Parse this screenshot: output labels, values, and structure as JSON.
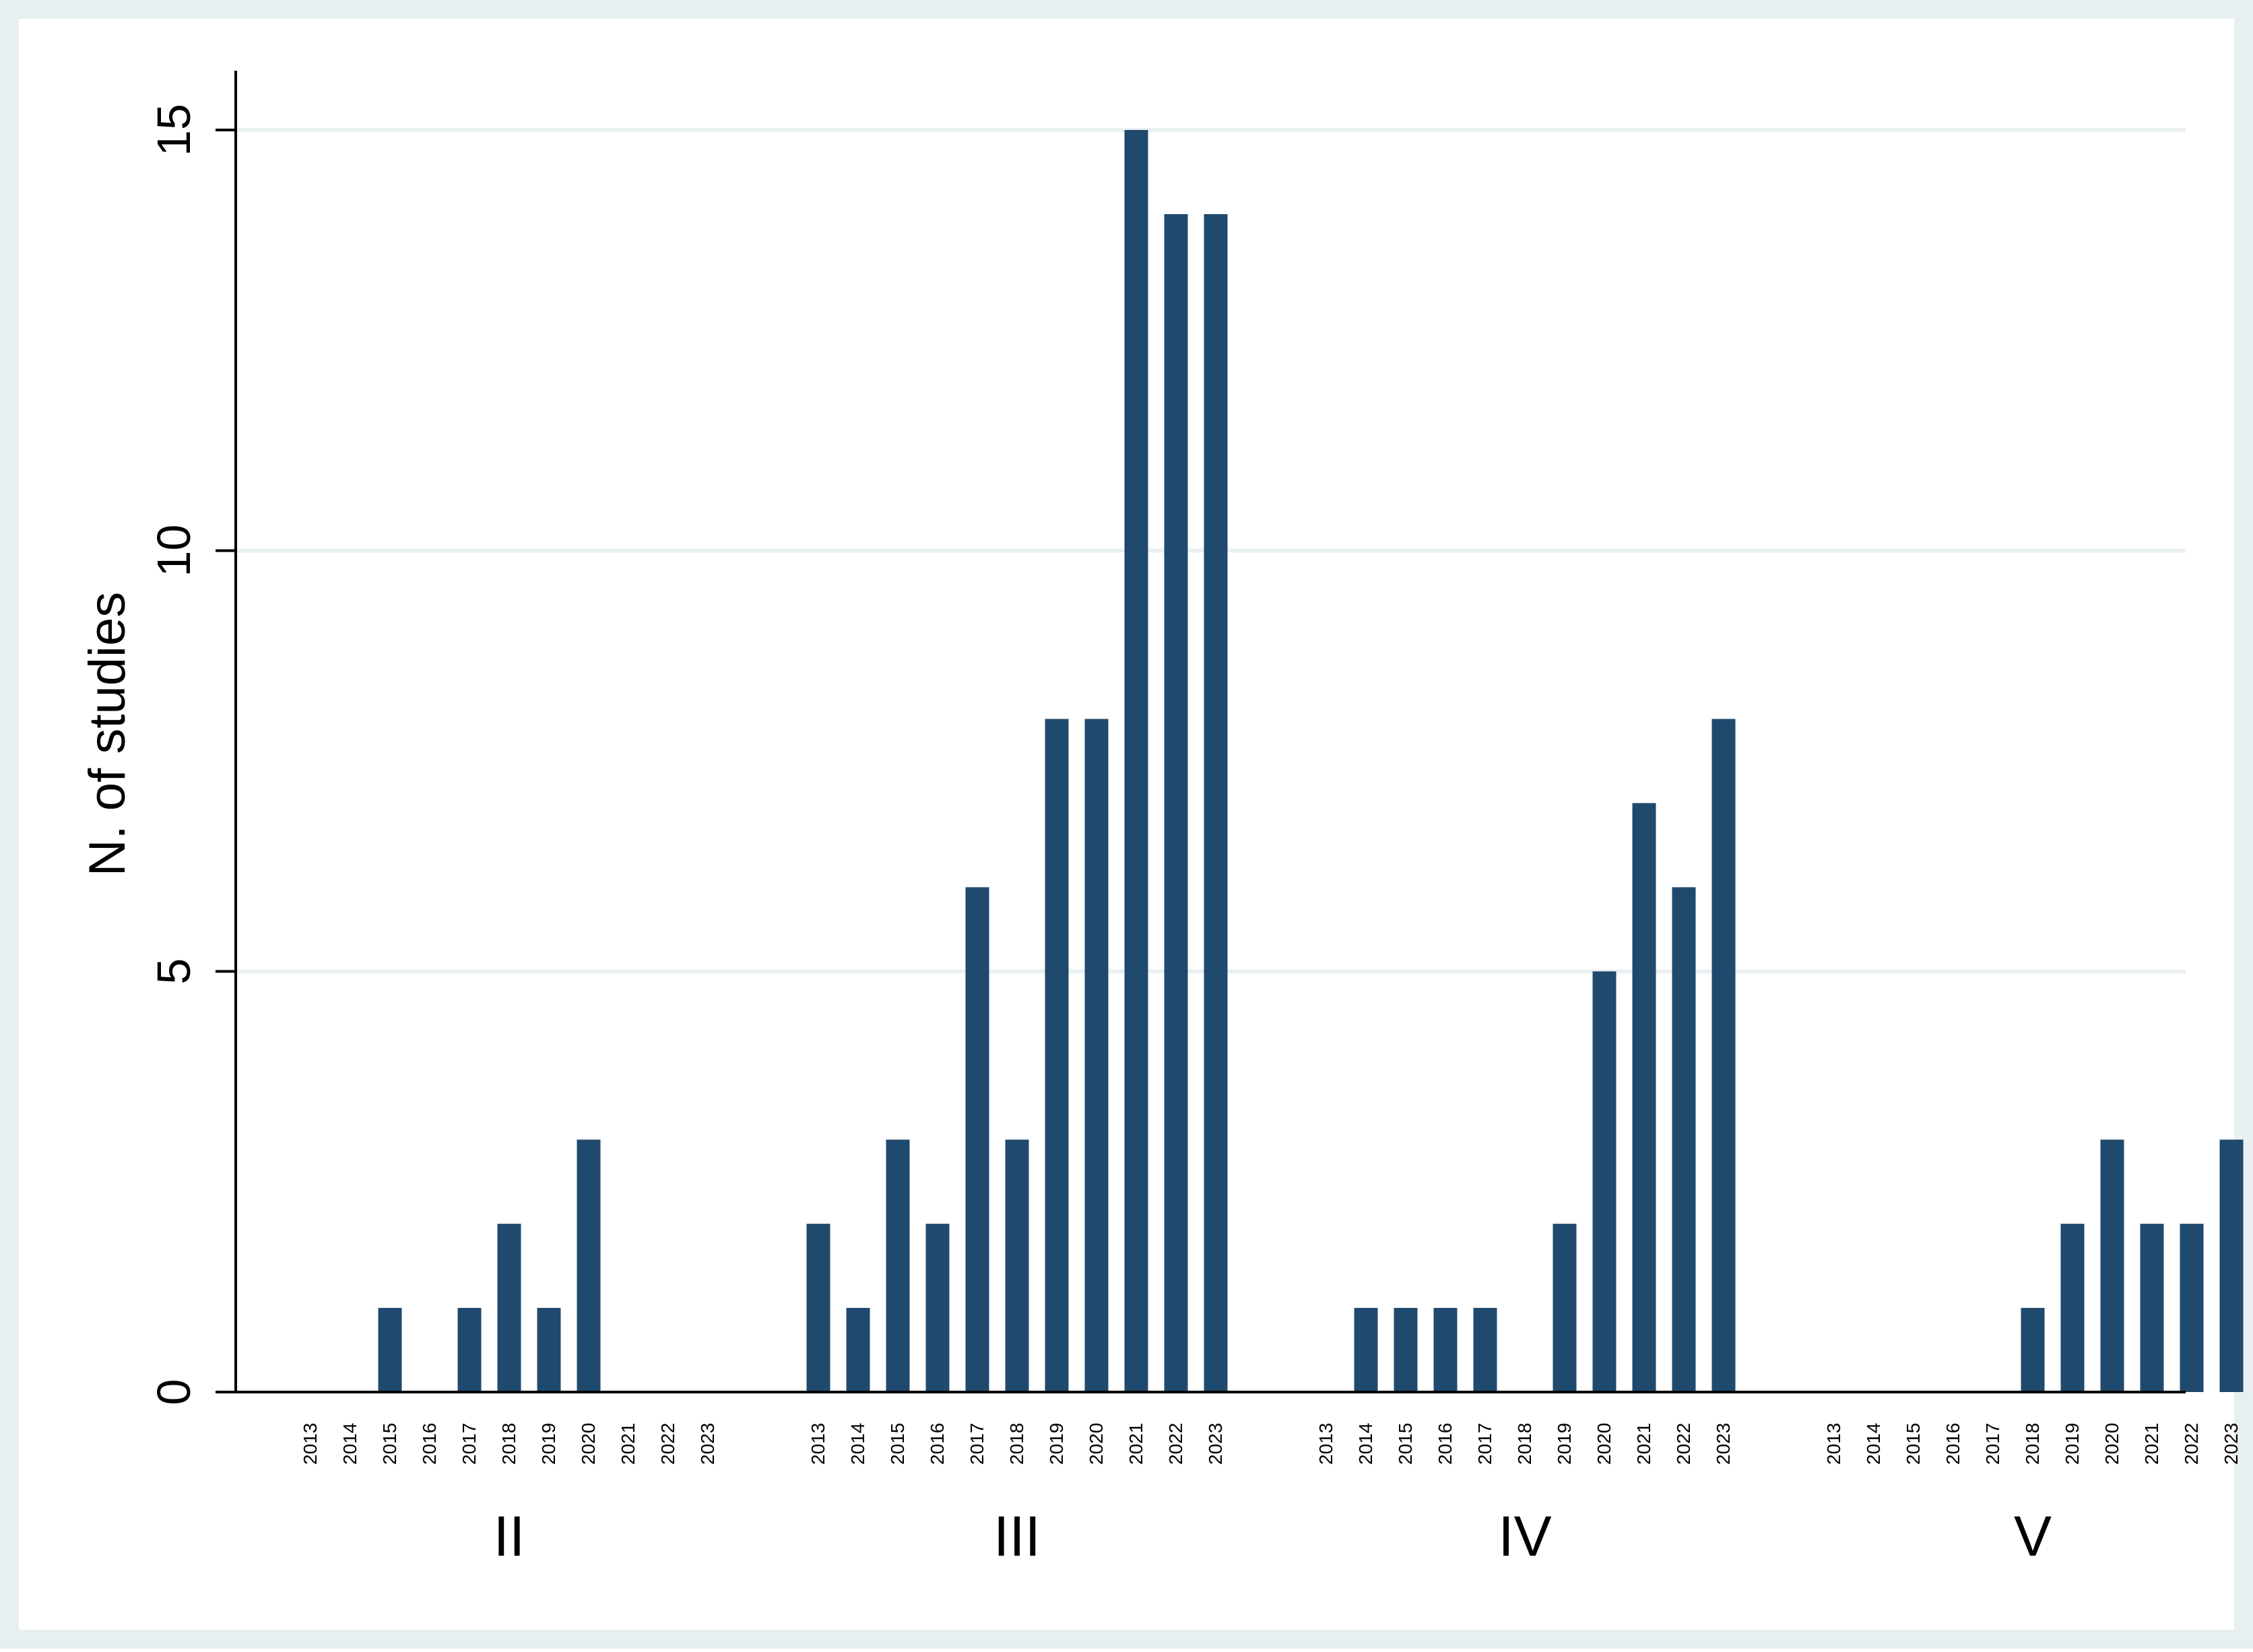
{
  "chart_data": {
    "type": "bar",
    "title": "",
    "xlabel": "",
    "ylabel": "N. of studies",
    "ylim": [
      0,
      16
    ],
    "yticks": [
      0,
      5,
      10,
      15
    ],
    "grid": true,
    "legend": "none",
    "bar_color": "#1f4a6e",
    "grid_color": "#eaf0f2",
    "frame_color": "#e8eff1",
    "groups": [
      {
        "label": "II",
        "categories": [
          "2013",
          "2014",
          "2015",
          "2016",
          "2017",
          "2018",
          "2019",
          "2020",
          "2021",
          "2022",
          "2023"
        ],
        "values": [
          0,
          0,
          1,
          0,
          1,
          2,
          1,
          3,
          0,
          0,
          0
        ]
      },
      {
        "label": "III",
        "categories": [
          "2013",
          "2014",
          "2015",
          "2016",
          "2017",
          "2018",
          "2019",
          "2020",
          "2021",
          "2022",
          "2023"
        ],
        "values": [
          2,
          1,
          3,
          2,
          6,
          3,
          8,
          8,
          15,
          14,
          14
        ]
      },
      {
        "label": "IV",
        "categories": [
          "2013",
          "2014",
          "2015",
          "2016",
          "2017",
          "2018",
          "2019",
          "2020",
          "2021",
          "2022",
          "2023"
        ],
        "values": [
          0,
          1,
          1,
          1,
          1,
          0,
          2,
          5,
          7,
          6,
          8
        ]
      },
      {
        "label": "V",
        "categories": [
          "2013",
          "2014",
          "2015",
          "2016",
          "2017",
          "2018",
          "2019",
          "2020",
          "2021",
          "2022",
          "2023"
        ],
        "values": [
          0,
          0,
          0,
          0,
          0,
          1,
          2,
          3,
          2,
          2,
          3
        ]
      }
    ]
  }
}
